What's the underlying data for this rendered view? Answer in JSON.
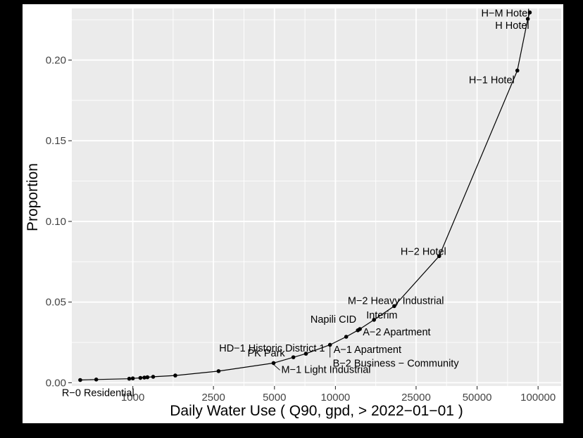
{
  "chart_data": {
    "type": "line",
    "title": "",
    "xlabel": "Daily Water Use ( Q90, gpd, > 2022−01−01 )",
    "ylabel": "Proportion",
    "x_scale": "log",
    "xlim": [
      500,
      130000
    ],
    "ylim": [
      -0.002,
      0.232
    ],
    "grid": true,
    "x_ticks": [
      {
        "value": 1000,
        "label": "1000"
      },
      {
        "value": 2500,
        "label": "2500"
      },
      {
        "value": 5000,
        "label": "5000"
      },
      {
        "value": 10000,
        "label": "10000"
      },
      {
        "value": 25000,
        "label": "25000"
      },
      {
        "value": 50000,
        "label": "50000"
      },
      {
        "value": 100000,
        "label": "100000"
      }
    ],
    "y_ticks": [
      {
        "value": 0.0,
        "label": "0.00"
      },
      {
        "value": 0.05,
        "label": "0.05"
      },
      {
        "value": 0.1,
        "label": "0.10"
      },
      {
        "value": 0.15,
        "label": "0.15"
      },
      {
        "value": 0.2,
        "label": "0.20"
      }
    ],
    "series": [
      {
        "points": [
          {
            "x": 550,
            "y": 0.0017
          },
          {
            "x": 660,
            "y": 0.002
          },
          {
            "x": 960,
            "y": 0.0025
          },
          {
            "x": 1000,
            "y": 0.0027
          },
          {
            "x": 1090,
            "y": 0.003
          },
          {
            "x": 1140,
            "y": 0.0032
          },
          {
            "x": 1180,
            "y": 0.0034
          },
          {
            "x": 1260,
            "y": 0.0037
          },
          {
            "x": 1620,
            "y": 0.0045
          },
          {
            "x": 2650,
            "y": 0.0072
          },
          {
            "x": 4950,
            "y": 0.0122
          },
          {
            "x": 6200,
            "y": 0.0158
          },
          {
            "x": 7150,
            "y": 0.018
          },
          {
            "x": 9400,
            "y": 0.0235
          },
          {
            "x": 11300,
            "y": 0.0285
          },
          {
            "x": 12900,
            "y": 0.0325
          },
          {
            "x": 13200,
            "y": 0.0333
          },
          {
            "x": 15500,
            "y": 0.039
          },
          {
            "x": 19500,
            "y": 0.0475
          },
          {
            "x": 32500,
            "y": 0.0785
          },
          {
            "x": 79000,
            "y": 0.1935
          },
          {
            "x": 89000,
            "y": 0.2255
          },
          {
            "x": 91000,
            "y": 0.2295
          }
        ]
      }
    ],
    "annotations": [
      {
        "text": "H−M Hotel"
      },
      {
        "text": "H Hotel"
      },
      {
        "text": "H−1 Hotel"
      },
      {
        "text": "H−2 Hotel"
      },
      {
        "text": "M−2 Heavy Industrial"
      },
      {
        "text": "Interim"
      },
      {
        "text": "Napili CID"
      },
      {
        "text": "A−2 Apartment"
      },
      {
        "text": "HD−1 Historic District 1"
      },
      {
        "text": "A−1 Apartment"
      },
      {
        "text": "PK Park"
      },
      {
        "text": "B−2 Business − Community"
      },
      {
        "text": "M−1 Light Industrial"
      },
      {
        "text": "R−0 Residential"
      }
    ],
    "colors": {
      "panel_background": "#ebebeb",
      "gridline": "#ffffff",
      "series": "#000000",
      "outer_background": "#000000"
    }
  }
}
